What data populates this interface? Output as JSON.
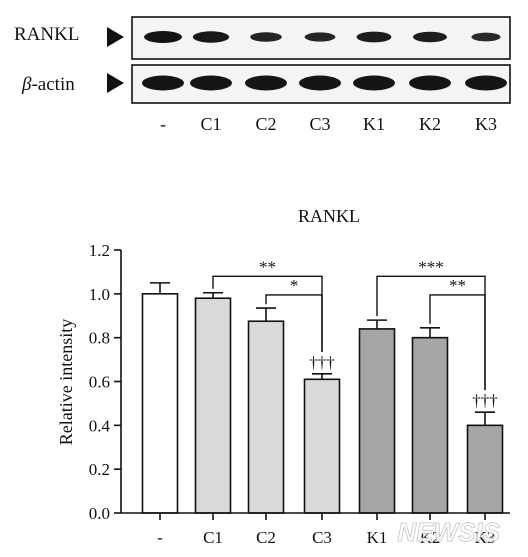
{
  "blot": {
    "rows": [
      {
        "label_main": "RANKL",
        "label_italic": "",
        "label_rest": "",
        "band_strength": [
          1.0,
          0.9,
          0.6,
          0.55,
          0.8,
          0.75,
          0.45
        ]
      },
      {
        "label_main": "",
        "label_italic": "β",
        "label_rest": "-actin",
        "band_strength": [
          1.0,
          1.0,
          1.0,
          1.0,
          1.0,
          1.0,
          1.0
        ]
      }
    ],
    "lanes": [
      "-",
      "C1",
      "C2",
      "C3",
      "K1",
      "K2",
      "K3"
    ]
  },
  "chart_data": {
    "type": "bar",
    "title": "RANKL",
    "ylabel": "Relative intensity",
    "xlabel": "",
    "categories": [
      "-",
      "C1",
      "C2",
      "C3",
      "K1",
      "K2",
      "K3"
    ],
    "values": [
      1.0,
      0.98,
      0.875,
      0.61,
      0.84,
      0.8,
      0.4
    ],
    "errors": [
      0.05,
      0.025,
      0.06,
      0.025,
      0.04,
      0.045,
      0.06
    ],
    "bar_colors": [
      "#ffffff",
      "#d9d9d9",
      "#d9d9d9",
      "#d9d9d9",
      "#a6a6a6",
      "#a6a6a6",
      "#a6a6a6"
    ],
    "ylim": [
      0,
      1.2
    ],
    "yticks": [
      "0.0",
      "0.2",
      "0.4",
      "0.6",
      "0.8",
      "1.0",
      "1.2"
    ],
    "ytick_values": [
      0,
      0.2,
      0.4,
      0.6,
      0.8,
      1.0,
      1.2
    ],
    "significance": [
      {
        "from": 1,
        "to": 3,
        "level": 1.08,
        "label": "**"
      },
      {
        "from": 2,
        "to": 3,
        "level": 0.995,
        "label": "*"
      },
      {
        "from": 4,
        "to": 6,
        "level": 1.08,
        "label": "***"
      },
      {
        "from": 5,
        "to": 6,
        "level": 0.995,
        "label": "**"
      }
    ],
    "daggers": [
      {
        "index": 3,
        "label": "†††"
      },
      {
        "index": 6,
        "label": "†††"
      }
    ],
    "grid": false,
    "legend": "none"
  },
  "watermark": "NEWSIS"
}
